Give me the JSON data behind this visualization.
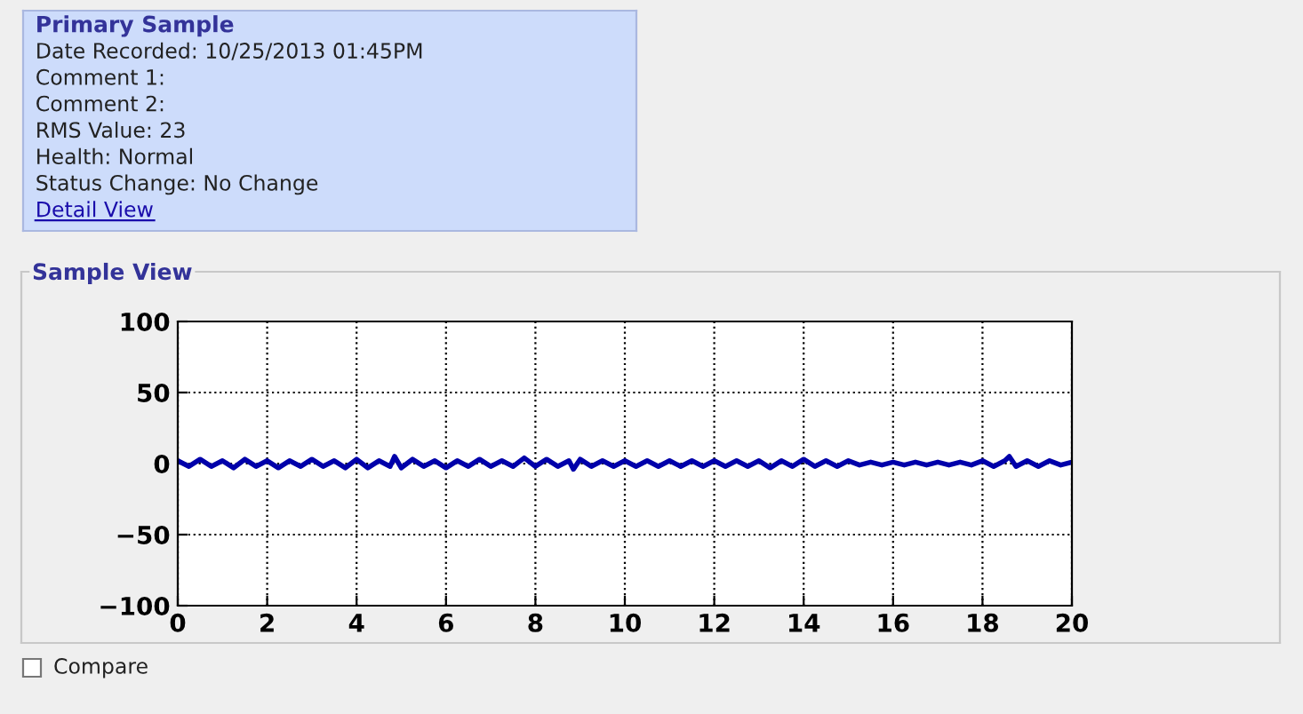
{
  "chart_data": [
    {
      "type": "other",
      "title": "Primary Sample",
      "annotations": [
        "Date Recorded: 10/25/2013 01:45PM",
        "Comment 1:",
        "Comment 2:",
        "RMS Value: 23",
        "Health: Normal",
        "Status Change: No Change",
        "Detail View"
      ]
    },
    {
      "type": "line",
      "title": "Sample View",
      "x": [
        0,
        0.25,
        0.5,
        0.75,
        1,
        1.25,
        1.5,
        1.75,
        2,
        2.25,
        2.5,
        2.75,
        3,
        3.25,
        3.5,
        3.75,
        4,
        4.25,
        4.5,
        4.75,
        4.85,
        5,
        5.25,
        5.5,
        5.75,
        6,
        6.25,
        6.5,
        6.75,
        7,
        7.25,
        7.5,
        7.75,
        8,
        8.25,
        8.5,
        8.75,
        8.85,
        9,
        9.25,
        9.5,
        9.75,
        10,
        10.25,
        10.5,
        10.75,
        11,
        11.25,
        11.5,
        11.75,
        12,
        12.25,
        12.5,
        12.75,
        13,
        13.25,
        13.5,
        13.75,
        14,
        14.25,
        14.5,
        14.75,
        15,
        15.25,
        15.5,
        15.75,
        16,
        16.25,
        16.5,
        16.75,
        17,
        17.25,
        17.5,
        17.75,
        18,
        18.25,
        18.5,
        18.6,
        18.75,
        19,
        19.25,
        19.5,
        19.75,
        20
      ],
      "series": [
        {
          "color": "#0000aa",
          "values": [
            2,
            -2,
            3,
            -2,
            2,
            -3,
            3,
            -2,
            2,
            -3,
            2,
            -2,
            3,
            -2,
            2,
            -3,
            3,
            -3,
            2,
            -2,
            5,
            -3,
            3,
            -2,
            2,
            -3,
            2,
            -2,
            3,
            -2,
            2,
            -2,
            4,
            -2,
            3,
            -2,
            2,
            -4,
            3,
            -2,
            2,
            -2,
            2,
            -2,
            2,
            -2,
            2,
            -2,
            2,
            -2,
            2,
            -2,
            2,
            -2,
            2,
            -3,
            2,
            -2,
            3,
            -2,
            2,
            -2,
            2,
            -1,
            1,
            -1,
            1,
            -1,
            1,
            -1,
            1,
            -1,
            1,
            -1,
            2,
            -2,
            2,
            5,
            -2,
            2,
            -2,
            2,
            -1,
            1
          ]
        }
      ],
      "xlim": [
        0,
        20
      ],
      "xticks": [
        0,
        2,
        4,
        6,
        8,
        10,
        12,
        14,
        16,
        18,
        20
      ],
      "ylim": [
        -100,
        100
      ],
      "yticks": [
        {
          "value": -100,
          "label": "−100"
        },
        {
          "value": -50,
          "label": "−50"
        },
        0,
        50,
        100
      ],
      "grid": true,
      "line_style": "solid",
      "marker": "none",
      "annotations": [
        "Compare"
      ]
    }
  ]
}
